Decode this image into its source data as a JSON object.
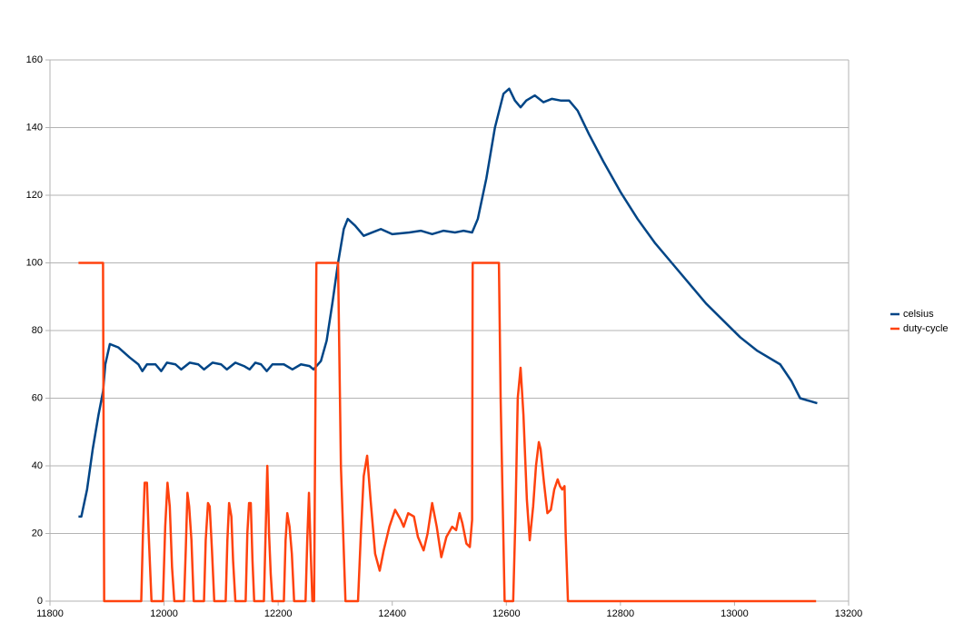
{
  "chart_data": {
    "type": "line",
    "xlim": [
      11800,
      13200
    ],
    "xticks": [
      11800,
      12000,
      12200,
      12400,
      12600,
      12800,
      13000,
      13200
    ],
    "ylim": [
      0,
      160
    ],
    "yticks": [
      0,
      20,
      40,
      60,
      80,
      100,
      120,
      140,
      160
    ],
    "grid": true,
    "legend": "right",
    "series": [
      {
        "name": "celsius",
        "color": "#004586",
        "x": [
          11850,
          11855,
          11865,
          11875,
          11885,
          11893,
          11897,
          11905,
          11920,
          11940,
          11955,
          11962,
          11970,
          11985,
          11995,
          12005,
          12020,
          12030,
          12045,
          12060,
          12070,
          12085,
          12100,
          12110,
          12125,
          12140,
          12150,
          12160,
          12170,
          12180,
          12190,
          12210,
          12225,
          12240,
          12255,
          12262,
          12275,
          12285,
          12295,
          12305,
          12315,
          12322,
          12335,
          12350,
          12365,
          12380,
          12400,
          12430,
          12450,
          12470,
          12490,
          12510,
          12525,
          12540,
          12550,
          12565,
          12580,
          12595,
          12605,
          12615,
          12625,
          12635,
          12650,
          12665,
          12680,
          12695,
          12710,
          12725,
          12745,
          12770,
          12800,
          12830,
          12860,
          12890,
          12920,
          12950,
          12980,
          13010,
          13040,
          13080,
          13100,
          13115,
          13145
        ],
        "values": [
          25,
          25,
          33,
          45,
          55,
          62,
          70,
          76,
          75,
          72,
          70,
          68,
          70,
          70,
          68,
          70.5,
          70,
          68.5,
          70.5,
          70,
          68.5,
          70.5,
          70,
          68.5,
          70.5,
          69.5,
          68.5,
          70.5,
          70,
          68,
          70,
          70,
          68.5,
          70,
          69.5,
          68.5,
          71,
          77,
          88,
          100,
          110,
          113,
          111,
          108,
          109,
          110,
          108.5,
          109,
          109.5,
          108.5,
          109.5,
          109,
          109.5,
          109,
          113,
          125,
          140,
          150,
          151.5,
          148,
          146,
          148,
          149.5,
          147.5,
          148.5,
          148,
          148,
          145,
          138,
          130,
          121,
          113,
          106,
          100,
          94,
          88,
          83,
          78,
          74,
          70,
          65,
          60,
          58.5
        ]
      },
      {
        "name": "duty-cycle",
        "color": "#ff420e",
        "x": [
          11850,
          11893,
          11895,
          11960,
          11963,
          11966,
          11970,
          11973,
          11978,
          11998,
          12002,
          12006,
          12010,
          12014,
          12018,
          12035,
          12038,
          12041,
          12044,
          12048,
          12052,
          12070,
          12073,
          12077,
          12080,
          12084,
          12088,
          12108,
          12111,
          12114,
          12118,
          12121,
          12125,
          12143,
          12146,
          12149,
          12152,
          12155,
          12158,
          12175,
          12178,
          12181,
          12184,
          12187,
          12190,
          12210,
          12213,
          12216,
          12220,
          12224,
          12228,
          12248,
          12251,
          12254,
          12257,
          12260,
          12263,
          12265,
          12267,
          12305,
          12310,
          12318,
          12340,
          12345,
          12350,
          12356,
          12362,
          12370,
          12378,
          12385,
          12395,
          12405,
          12415,
          12420,
          12428,
          12438,
          12445,
          12455,
          12462,
          12470,
          12478,
          12486,
          12495,
          12505,
          12512,
          12518,
          12523,
          12530,
          12536,
          12540,
          12541,
          12587,
          12590,
          12597,
          12612,
          12616,
          12620,
          12625,
          12630,
          12636,
          12641,
          12647,
          12652,
          12657,
          12660,
          12666,
          12672,
          12678,
          12684,
          12690,
          12694,
          12698,
          12702,
          12704,
          12708,
          13143
        ],
        "values": [
          100,
          100,
          0,
          0,
          20,
          35,
          35,
          20,
          0,
          0,
          22,
          35,
          28,
          10,
          0,
          0,
          15,
          32,
          28,
          18,
          0,
          0,
          18,
          29,
          28,
          15,
          0,
          0,
          18,
          29,
          25,
          12,
          0,
          0,
          20,
          29,
          29,
          12,
          0,
          0,
          20,
          40,
          20,
          8,
          0,
          0,
          18,
          26,
          22,
          14,
          0,
          0,
          18,
          32,
          15,
          0,
          0,
          50,
          100,
          100,
          40,
          0,
          0,
          20,
          37,
          43,
          30,
          14,
          9,
          15,
          22,
          27,
          24,
          22,
          26,
          25,
          19,
          15,
          20,
          29,
          22,
          13,
          19,
          22,
          21,
          26,
          23,
          17,
          16,
          24,
          100,
          100,
          60,
          0,
          0,
          25,
          60,
          69,
          55,
          30,
          18,
          28,
          40,
          47,
          45,
          35,
          26,
          27,
          33,
          36,
          34,
          33,
          34,
          20,
          0,
          0
        ]
      }
    ]
  }
}
